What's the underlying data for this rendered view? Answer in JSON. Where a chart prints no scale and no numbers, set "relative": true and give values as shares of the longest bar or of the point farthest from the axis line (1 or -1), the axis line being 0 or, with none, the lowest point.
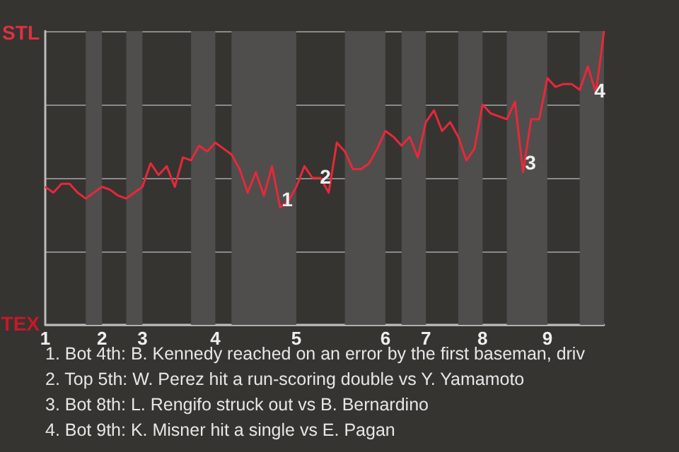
{
  "chart_data": {
    "type": "line",
    "categories": [
      "1",
      null,
      null,
      null,
      null,
      null,
      null,
      "2",
      null,
      null,
      null,
      null,
      "3",
      null,
      null,
      null,
      null,
      null,
      null,
      null,
      null,
      "4",
      null,
      null,
      null,
      null,
      null,
      null,
      null,
      null,
      null,
      "5",
      null,
      null,
      null,
      null,
      null,
      null,
      null,
      null,
      null,
      null,
      "6",
      null,
      null,
      null,
      null,
      "7",
      null,
      null,
      null,
      null,
      null,
      null,
      "8",
      null,
      null,
      null,
      null,
      null,
      null,
      null,
      "9",
      null,
      null,
      null,
      null,
      null,
      null,
      null
    ],
    "series": [
      {
        "color": "#e8283a",
        "values": [
          0.47,
          0.45,
          0.48,
          0.48,
          0.45,
          0.43,
          0.45,
          0.47,
          0.46,
          0.44,
          0.43,
          0.45,
          0.47,
          0.55,
          0.51,
          0.54,
          0.47,
          0.57,
          0.56,
          0.61,
          0.59,
          0.62,
          0.6,
          0.58,
          0.53,
          0.45,
          0.52,
          0.44,
          0.54,
          0.4,
          0.42,
          0.47,
          0.54,
          0.5,
          0.5,
          0.45,
          0.62,
          0.59,
          0.53,
          0.53,
          0.55,
          0.6,
          0.66,
          0.64,
          0.61,
          0.64,
          0.57,
          0.69,
          0.73,
          0.66,
          0.69,
          0.64,
          0.56,
          0.6,
          0.75,
          0.72,
          0.71,
          0.7,
          0.76,
          0.52,
          0.7,
          0.7,
          0.84,
          0.81,
          0.82,
          0.82,
          0.8,
          0.88,
          0.79,
          1
        ]
      }
    ],
    "relative": true,
    "grid": "y",
    "annotations": [
      "STL",
      "TEX",
      "1",
      "2",
      "3",
      "4",
      "1. Bot 4th: B. Kennedy reached on an error by the first baseman, driv",
      "2. Top 5th: W. Perez hit a run-scoring double vs Y. Yamamoto",
      "3. Bot 8th: L. Rengifo struck out vs B. Bernardino",
      "4. Bot 9th: K. Misner hit a single vs E. Pagan"
    ],
    "marker": "none"
  }
}
